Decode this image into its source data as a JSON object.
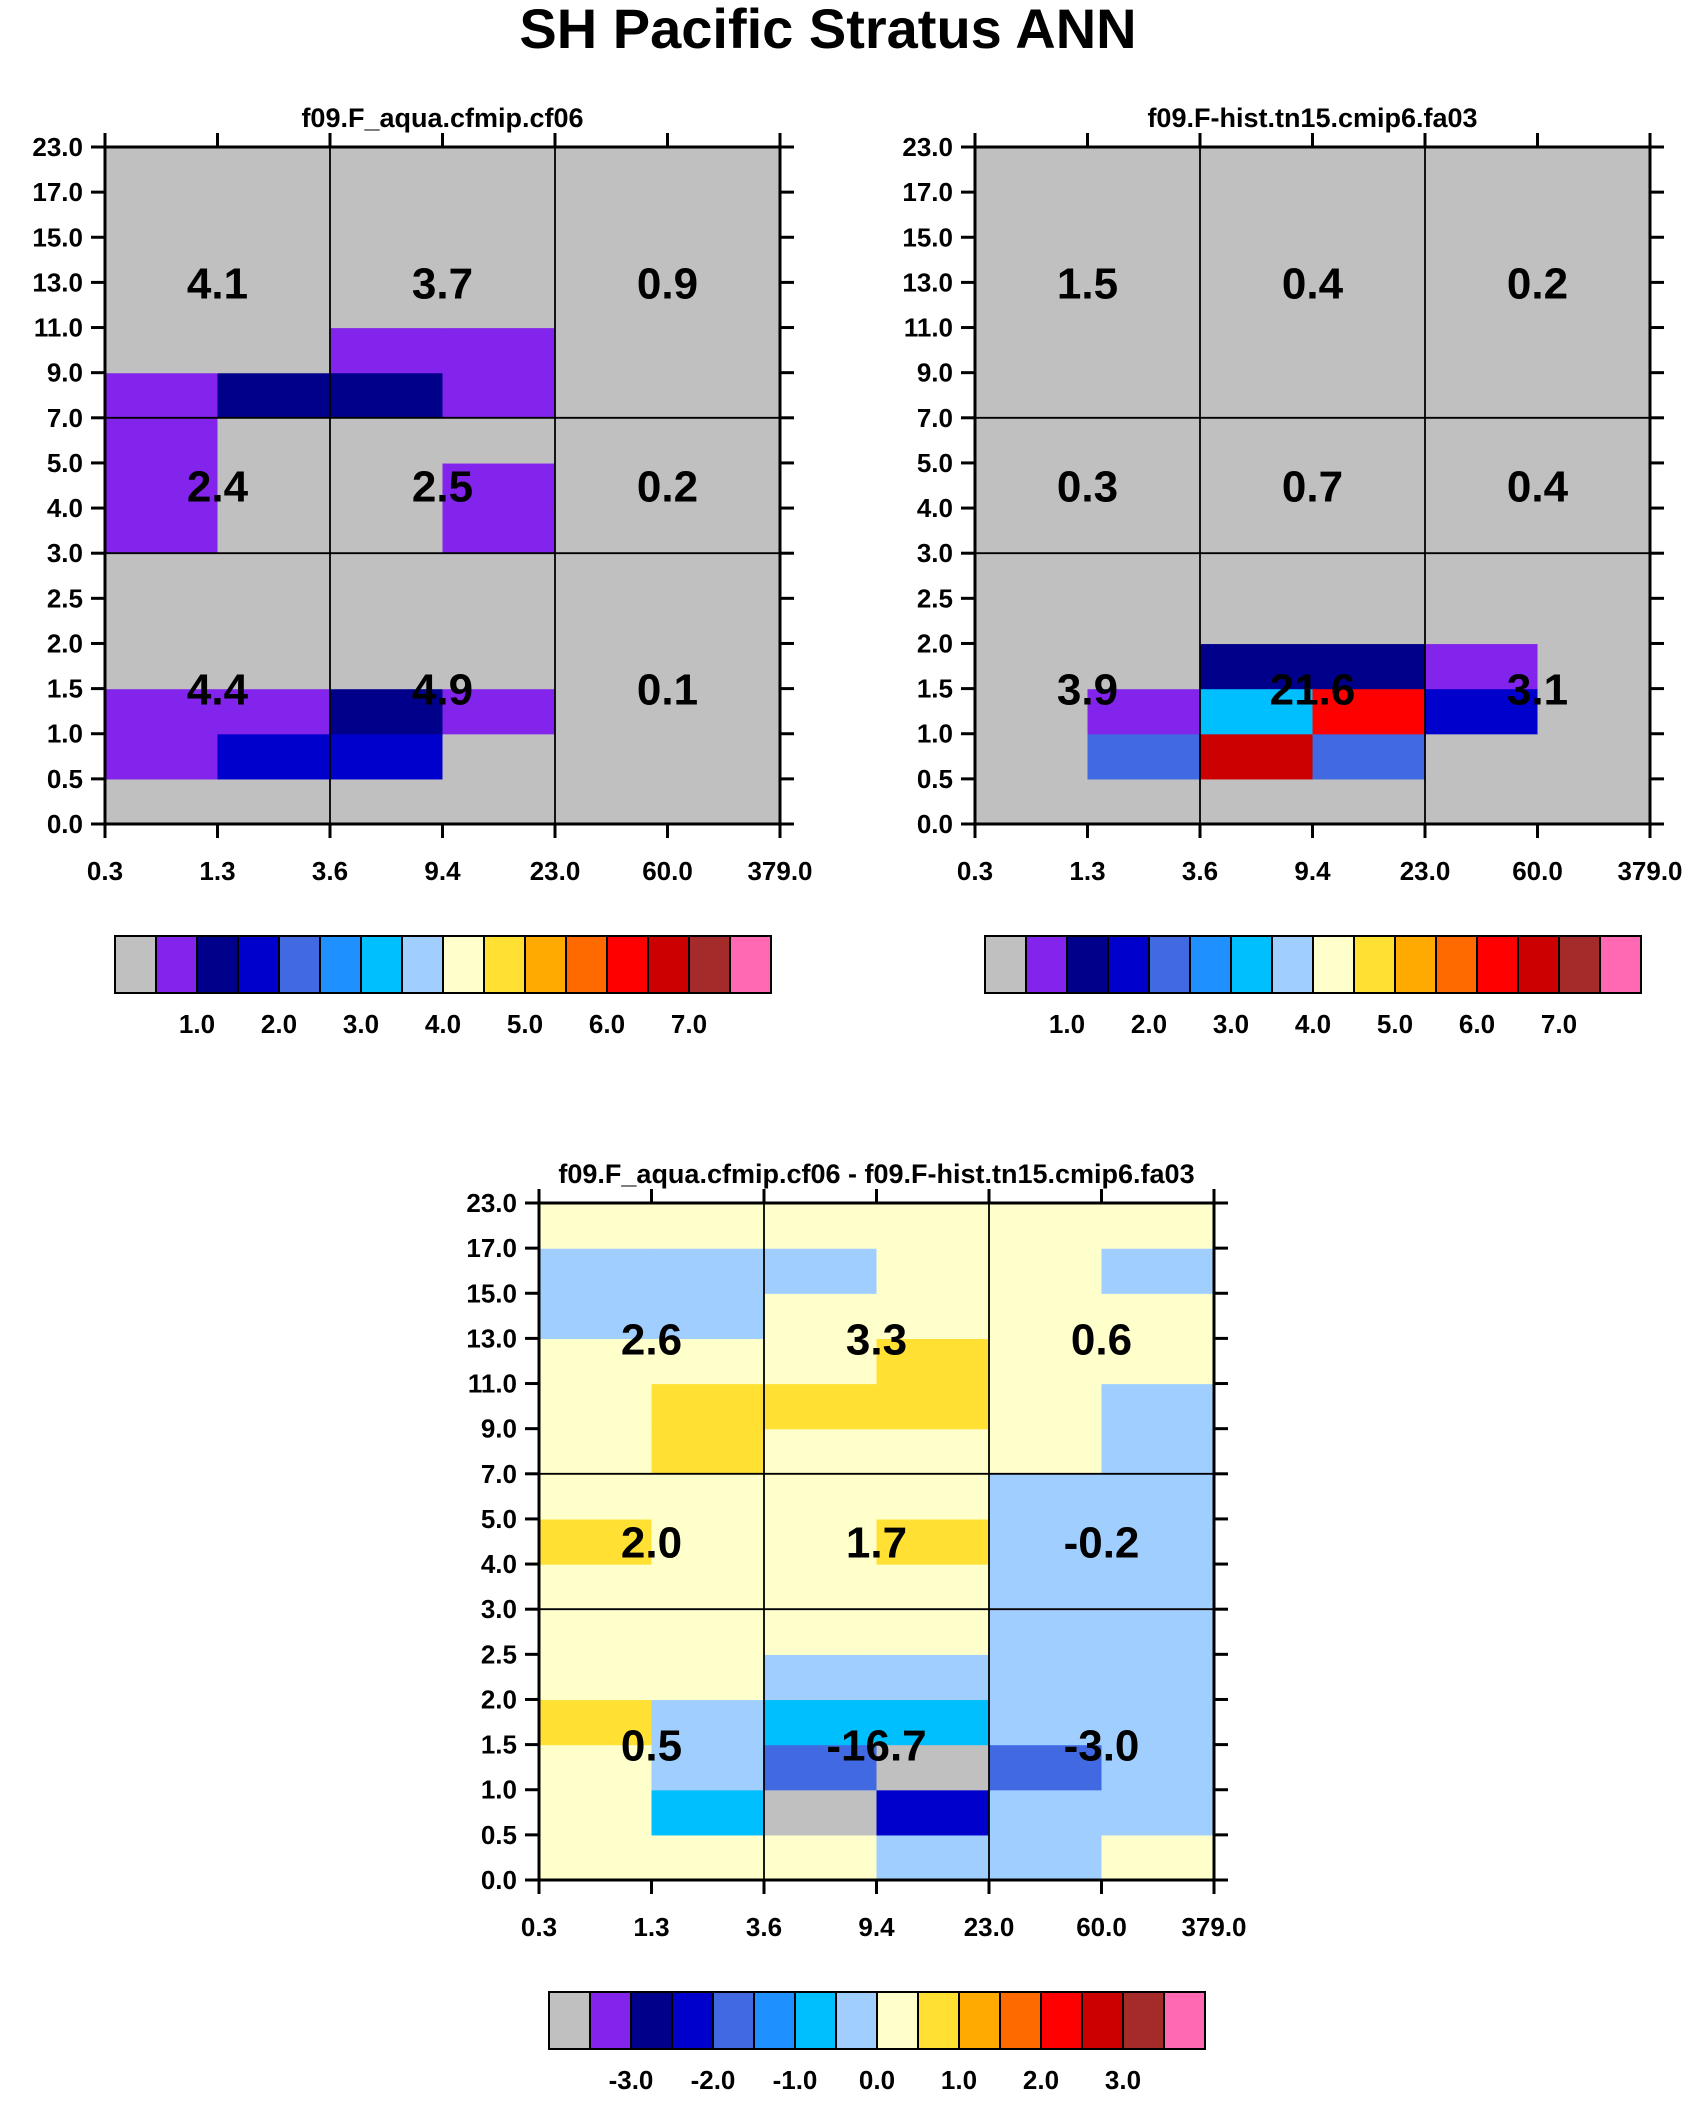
{
  "title": "SH Pacific Stratus ANN",
  "palette": [
    "#c0c0c0",
    "#8224eb",
    "#00008a",
    "#0000cc",
    "#4169e1",
    "#1e90ff",
    "#00bfff",
    "#a0cfff",
    "#ffffcc",
    "#ffe033",
    "#ffaa00",
    "#ff6a00",
    "#ff0000",
    "#cc0000",
    "#a52a2a",
    "#ff69b4"
  ],
  "chart_data": [
    {
      "type": "heatmap",
      "title": "f09.F_aqua.cfmip.cf06",
      "x_tick_labels": [
        "0.3",
        "1.3",
        "3.6",
        "9.4",
        "23.0",
        "60.0",
        "379.0"
      ],
      "y_tick_labels": [
        "0.0",
        "0.5",
        "1.0",
        "1.5",
        "2.0",
        "2.5",
        "3.0",
        "4.0",
        "5.0",
        "7.0",
        "9.0",
        "11.0",
        "13.0",
        "15.0",
        "17.0",
        "23.0"
      ],
      "color_index_grid_bottom_to_top": [
        [
          0,
          0,
          0,
          0,
          0,
          0
        ],
        [
          1,
          3,
          3,
          0,
          0,
          0
        ],
        [
          1,
          1,
          2,
          1,
          0,
          0
        ],
        [
          0,
          0,
          0,
          0,
          0,
          0
        ],
        [
          0,
          0,
          0,
          0,
          0,
          0
        ],
        [
          0,
          0,
          0,
          0,
          0,
          0
        ],
        [
          1,
          0,
          0,
          1,
          0,
          0
        ],
        [
          1,
          0,
          0,
          1,
          0,
          0
        ],
        [
          1,
          0,
          0,
          0,
          0,
          0
        ],
        [
          1,
          2,
          2,
          1,
          0,
          0
        ],
        [
          0,
          0,
          1,
          1,
          0,
          0
        ],
        [
          0,
          0,
          0,
          0,
          0,
          0
        ],
        [
          0,
          0,
          0,
          0,
          0,
          0
        ],
        [
          0,
          0,
          0,
          0,
          0,
          0
        ],
        [
          0,
          0,
          0,
          0,
          0,
          0
        ]
      ],
      "summary_values_bottom_to_top": [
        [
          "4.4",
          "4.9",
          "0.1"
        ],
        [
          "2.4",
          "2.5",
          "0.2"
        ],
        [
          "4.1",
          "3.7",
          "0.9"
        ]
      ],
      "colorbar_labels": [
        "1.0",
        "2.0",
        "3.0",
        "4.0",
        "5.0",
        "6.0",
        "7.0"
      ]
    },
    {
      "type": "heatmap",
      "title": "f09.F-hist.tn15.cmip6.fa03",
      "x_tick_labels": [
        "0.3",
        "1.3",
        "3.6",
        "9.4",
        "23.0",
        "60.0",
        "379.0"
      ],
      "y_tick_labels": [
        "0.0",
        "0.5",
        "1.0",
        "1.5",
        "2.0",
        "2.5",
        "3.0",
        "4.0",
        "5.0",
        "7.0",
        "9.0",
        "11.0",
        "13.0",
        "15.0",
        "17.0",
        "23.0"
      ],
      "color_index_grid_bottom_to_top": [
        [
          0,
          0,
          0,
          0,
          0,
          0
        ],
        [
          0,
          4,
          13,
          4,
          0,
          0
        ],
        [
          0,
          1,
          6,
          12,
          3,
          0
        ],
        [
          0,
          0,
          2,
          2,
          1,
          0
        ],
        [
          0,
          0,
          0,
          0,
          0,
          0
        ],
        [
          0,
          0,
          0,
          0,
          0,
          0
        ],
        [
          0,
          0,
          0,
          0,
          0,
          0
        ],
        [
          0,
          0,
          0,
          0,
          0,
          0
        ],
        [
          0,
          0,
          0,
          0,
          0,
          0
        ],
        [
          0,
          0,
          0,
          0,
          0,
          0
        ],
        [
          0,
          0,
          0,
          0,
          0,
          0
        ],
        [
          0,
          0,
          0,
          0,
          0,
          0
        ],
        [
          0,
          0,
          0,
          0,
          0,
          0
        ],
        [
          0,
          0,
          0,
          0,
          0,
          0
        ],
        [
          0,
          0,
          0,
          0,
          0,
          0
        ]
      ],
      "summary_values_bottom_to_top": [
        [
          "3.9",
          "21.6",
          "3.1"
        ],
        [
          "0.3",
          "0.7",
          "0.4"
        ],
        [
          "1.5",
          "0.4",
          "0.2"
        ]
      ],
      "colorbar_labels": [
        "1.0",
        "2.0",
        "3.0",
        "4.0",
        "5.0",
        "6.0",
        "7.0"
      ]
    },
    {
      "type": "heatmap",
      "title": "f09.F_aqua.cfmip.cf06 - f09.F-hist.tn15.cmip6.fa03",
      "x_tick_labels": [
        "0.3",
        "1.3",
        "3.6",
        "9.4",
        "23.0",
        "60.0",
        "379.0"
      ],
      "y_tick_labels": [
        "0.0",
        "0.5",
        "1.0",
        "1.5",
        "2.0",
        "2.5",
        "3.0",
        "4.0",
        "5.0",
        "7.0",
        "9.0",
        "11.0",
        "13.0",
        "15.0",
        "17.0",
        "23.0"
      ],
      "color_index_grid_bottom_to_top": [
        [
          8,
          8,
          8,
          7,
          7,
          8
        ],
        [
          8,
          6,
          0,
          3,
          7,
          7
        ],
        [
          8,
          7,
          4,
          0,
          4,
          7
        ],
        [
          9,
          7,
          6,
          6,
          7,
          7
        ],
        [
          8,
          8,
          7,
          7,
          7,
          7
        ],
        [
          8,
          8,
          8,
          8,
          7,
          7
        ],
        [
          8,
          8,
          8,
          8,
          7,
          7
        ],
        [
          9,
          8,
          8,
          9,
          7,
          7
        ],
        [
          8,
          8,
          8,
          8,
          7,
          7
        ],
        [
          8,
          9,
          8,
          8,
          8,
          7
        ],
        [
          8,
          9,
          9,
          9,
          8,
          7
        ],
        [
          8,
          8,
          8,
          9,
          8,
          8
        ],
        [
          7,
          7,
          8,
          8,
          8,
          8
        ],
        [
          7,
          7,
          7,
          8,
          8,
          7
        ],
        [
          8,
          8,
          8,
          8,
          8,
          8
        ]
      ],
      "summary_values_bottom_to_top": [
        [
          "0.5",
          "-16.7",
          "-3.0"
        ],
        [
          "2.0",
          "1.7",
          "-0.2"
        ],
        [
          "2.6",
          "3.3",
          "0.6"
        ]
      ],
      "colorbar_labels": [
        "-3.0",
        "-2.0",
        "-1.0",
        "0.0",
        "1.0",
        "2.0",
        "3.0"
      ]
    }
  ]
}
